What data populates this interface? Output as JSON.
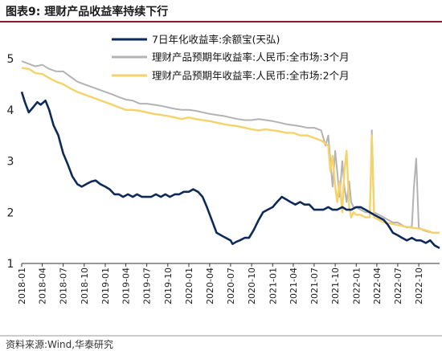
{
  "header": {
    "title": "图表9:  理财产品收益率持续下行"
  },
  "footer": {
    "source": "资料来源:Wind,华泰研究"
  },
  "colors": {
    "title_rule": "#8a1b2b",
    "navy": "#0e2a5a",
    "gray": "#b3b3b3",
    "gold": "#f5d26a"
  },
  "chart_data": {
    "type": "line",
    "ylim": [
      1,
      5
    ],
    "yticks": [
      "1",
      "2",
      "3",
      "4",
      "5"
    ],
    "xlim": [
      "2018-01",
      "2022-12"
    ],
    "xticks": [
      "2018-01",
      "2018-04",
      "2018-07",
      "2018-10",
      "2019-01",
      "2019-04",
      "2019-07",
      "2019-10",
      "2020-01",
      "2020-04",
      "2020-07",
      "2020-10",
      "2021-01",
      "2021-04",
      "2021-07",
      "2021-10",
      "2022-01",
      "2022-04",
      "2022-07",
      "2022-10"
    ],
    "legend_position": "top-center",
    "grid": false,
    "series": [
      {
        "name": "7日年化收益率:余额宝(天弘)",
        "color": "#0e2a5a",
        "x": [
          "2018-01-01",
          "2018-01-15",
          "2018-02-01",
          "2018-02-20",
          "2018-03-10",
          "2018-03-25",
          "2018-04-15",
          "2018-05-01",
          "2018-05-20",
          "2018-06-10",
          "2018-07-01",
          "2018-07-20",
          "2018-08-10",
          "2018-09-01",
          "2018-09-20",
          "2018-10-10",
          "2018-11-01",
          "2018-11-20",
          "2018-12-10",
          "2019-01-01",
          "2019-01-20",
          "2019-02-10",
          "2019-03-01",
          "2019-03-20",
          "2019-04-10",
          "2019-05-01",
          "2019-05-20",
          "2019-06-10",
          "2019-07-01",
          "2019-07-20",
          "2019-08-10",
          "2019-09-01",
          "2019-09-20",
          "2019-10-10",
          "2019-11-01",
          "2019-11-20",
          "2019-12-10",
          "2020-01-01",
          "2020-01-20",
          "2020-02-10",
          "2020-03-01",
          "2020-03-20",
          "2020-04-10",
          "2020-05-01",
          "2020-05-20",
          "2020-06-10",
          "2020-07-01",
          "2020-07-10",
          "2020-07-25",
          "2020-08-10",
          "2020-09-01",
          "2020-09-20",
          "2020-10-10",
          "2020-11-01",
          "2020-11-20",
          "2020-12-10",
          "2021-01-01",
          "2021-01-20",
          "2021-02-10",
          "2021-03-01",
          "2021-03-20",
          "2021-04-10",
          "2021-05-01",
          "2021-05-20",
          "2021-06-10",
          "2021-07-01",
          "2021-07-20",
          "2021-08-10",
          "2021-09-01",
          "2021-09-20",
          "2021-10-10",
          "2021-11-01",
          "2021-11-20",
          "2021-12-10",
          "2022-01-01",
          "2022-01-20",
          "2022-02-10",
          "2022-03-01",
          "2022-03-20",
          "2022-04-10",
          "2022-05-01",
          "2022-05-20",
          "2022-06-10",
          "2022-07-01",
          "2022-07-20",
          "2022-08-10",
          "2022-09-01",
          "2022-09-20",
          "2022-10-10",
          "2022-11-01",
          "2022-11-20",
          "2022-12-10",
          "2022-12-31"
        ],
        "y": [
          4.35,
          4.15,
          3.95,
          4.05,
          4.15,
          4.1,
          4.18,
          4.0,
          3.7,
          3.5,
          3.15,
          2.95,
          2.7,
          2.55,
          2.5,
          2.55,
          2.6,
          2.62,
          2.55,
          2.5,
          2.45,
          2.35,
          2.35,
          2.3,
          2.35,
          2.3,
          2.35,
          2.3,
          2.3,
          2.3,
          2.35,
          2.3,
          2.35,
          2.3,
          2.35,
          2.35,
          2.4,
          2.4,
          2.45,
          2.4,
          2.3,
          2.1,
          1.85,
          1.6,
          1.55,
          1.5,
          1.45,
          1.38,
          1.42,
          1.45,
          1.5,
          1.5,
          1.65,
          1.85,
          2.0,
          2.05,
          2.1,
          2.2,
          2.3,
          2.25,
          2.2,
          2.15,
          2.2,
          2.15,
          2.15,
          2.05,
          2.05,
          2.05,
          2.1,
          2.05,
          2.05,
          2.1,
          2.05,
          2.05,
          2.1,
          2.1,
          2.05,
          2.0,
          1.95,
          1.9,
          1.85,
          1.75,
          1.6,
          1.55,
          1.5,
          1.45,
          1.5,
          1.45,
          1.45,
          1.4,
          1.45,
          1.35,
          1.3
        ]
      },
      {
        "name": "理财产品预期年收益率:人民币:全市场:3个月",
        "color": "#b3b3b3",
        "x": [
          "2018-01-01",
          "2018-02-01",
          "2018-03-01",
          "2018-04-01",
          "2018-05-01",
          "2018-06-01",
          "2018-07-01",
          "2018-08-01",
          "2018-09-01",
          "2018-10-01",
          "2018-11-01",
          "2018-12-01",
          "2019-01-01",
          "2019-02-01",
          "2019-03-01",
          "2019-04-01",
          "2019-05-01",
          "2019-06-01",
          "2019-07-01",
          "2019-08-01",
          "2019-09-01",
          "2019-10-01",
          "2019-11-01",
          "2019-12-01",
          "2020-01-01",
          "2020-02-01",
          "2020-03-01",
          "2020-04-01",
          "2020-05-01",
          "2020-06-01",
          "2020-07-01",
          "2020-08-01",
          "2020-09-01",
          "2020-10-01",
          "2020-11-01",
          "2020-12-01",
          "2021-01-01",
          "2021-02-01",
          "2021-03-01",
          "2021-04-01",
          "2021-05-01",
          "2021-06-01",
          "2021-07-01",
          "2021-08-01",
          "2021-08-20",
          "2021-09-01",
          "2021-09-10",
          "2021-09-20",
          "2021-10-01",
          "2021-10-10",
          "2021-10-20",
          "2021-11-01",
          "2021-11-10",
          "2021-11-20",
          "2021-12-01",
          "2021-12-10",
          "2021-12-20",
          "2022-01-01",
          "2022-01-20",
          "2022-02-10",
          "2022-03-01",
          "2022-03-05",
          "2022-03-10",
          "2022-03-20",
          "2022-04-10",
          "2022-05-01",
          "2022-05-20",
          "2022-06-10",
          "2022-07-01",
          "2022-07-20",
          "2022-08-10",
          "2022-09-01",
          "2022-09-10",
          "2022-09-20",
          "2022-10-01",
          "2022-10-20",
          "2022-11-10",
          "2022-12-01",
          "2022-12-31"
        ],
        "y": [
          4.95,
          4.9,
          4.85,
          4.88,
          4.8,
          4.75,
          4.75,
          4.65,
          4.55,
          4.5,
          4.45,
          4.4,
          4.35,
          4.3,
          4.25,
          4.2,
          4.18,
          4.12,
          4.12,
          4.1,
          4.08,
          4.05,
          4.02,
          4.0,
          4.0,
          3.98,
          3.95,
          3.92,
          3.9,
          3.88,
          3.85,
          3.82,
          3.8,
          3.8,
          3.82,
          3.8,
          3.78,
          3.75,
          3.72,
          3.7,
          3.68,
          3.65,
          3.65,
          3.6,
          3.3,
          3.5,
          3.0,
          2.5,
          3.2,
          2.8,
          2.3,
          3.0,
          2.5,
          2.2,
          2.6,
          2.2,
          2.1,
          2.1,
          2.05,
          2.0,
          2.0,
          2.5,
          3.6,
          2.0,
          1.95,
          1.9,
          1.85,
          1.8,
          1.8,
          1.75,
          1.7,
          1.72,
          2.5,
          3.05,
          1.7,
          1.65,
          1.62,
          1.6,
          1.6
        ]
      },
      {
        "name": "理财产品预期年收益率:人民币:全市场:2个月",
        "color": "#f5d26a",
        "x": [
          "2018-01-01",
          "2018-02-01",
          "2018-03-01",
          "2018-04-01",
          "2018-05-01",
          "2018-06-01",
          "2018-07-01",
          "2018-08-01",
          "2018-09-01",
          "2018-10-01",
          "2018-11-01",
          "2018-12-01",
          "2019-01-01",
          "2019-02-01",
          "2019-03-01",
          "2019-04-01",
          "2019-05-01",
          "2019-06-01",
          "2019-07-01",
          "2019-08-01",
          "2019-09-01",
          "2019-10-01",
          "2019-11-01",
          "2019-12-01",
          "2020-01-01",
          "2020-02-01",
          "2020-03-01",
          "2020-04-01",
          "2020-05-01",
          "2020-06-01",
          "2020-07-01",
          "2020-08-01",
          "2020-09-01",
          "2020-10-01",
          "2020-11-01",
          "2020-12-01",
          "2021-01-01",
          "2021-02-01",
          "2021-03-01",
          "2021-04-01",
          "2021-05-01",
          "2021-06-01",
          "2021-07-01",
          "2021-08-01",
          "2021-09-01",
          "2021-09-10",
          "2021-09-20",
          "2021-10-01",
          "2021-10-10",
          "2021-10-20",
          "2021-11-01",
          "2021-11-10",
          "2021-11-20",
          "2021-12-01",
          "2021-12-10",
          "2021-12-20",
          "2022-01-01",
          "2022-01-20",
          "2022-02-10",
          "2022-03-01",
          "2022-03-10",
          "2022-03-20",
          "2022-04-10",
          "2022-05-01",
          "2022-06-01",
          "2022-07-01",
          "2022-08-01",
          "2022-09-01",
          "2022-10-01",
          "2022-11-01",
          "2022-12-01",
          "2022-12-31"
        ],
        "y": [
          4.82,
          4.8,
          4.72,
          4.7,
          4.62,
          4.55,
          4.5,
          4.42,
          4.35,
          4.3,
          4.25,
          4.2,
          4.15,
          4.1,
          4.05,
          4.0,
          4.0,
          3.98,
          3.95,
          3.92,
          3.9,
          3.88,
          3.85,
          3.82,
          3.85,
          3.82,
          3.8,
          3.78,
          3.75,
          3.72,
          3.7,
          3.68,
          3.65,
          3.62,
          3.6,
          3.62,
          3.6,
          3.58,
          3.55,
          3.55,
          3.5,
          3.5,
          3.45,
          3.4,
          3.3,
          2.8,
          3.1,
          2.5,
          2.2,
          2.6,
          2.0,
          2.8,
          3.2,
          2.1,
          1.9,
          2.0,
          1.95,
          1.95,
          1.9,
          1.9,
          3.5,
          1.9,
          1.85,
          1.8,
          1.78,
          1.75,
          1.72,
          1.7,
          1.68,
          1.65,
          1.6,
          1.6
        ]
      }
    ]
  }
}
